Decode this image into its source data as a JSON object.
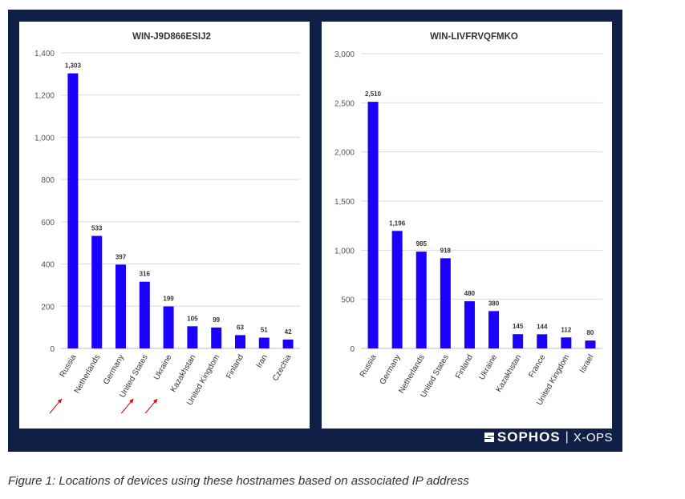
{
  "chart_data": [
    {
      "type": "bar",
      "title": "WIN-J9D866ESIJ2",
      "categories": [
        "Russia",
        "Netherlands",
        "Germany",
        "United States",
        "Ukraine",
        "Kazakhstan",
        "United Kingdom",
        "Finland",
        "Iran",
        "Czechia"
      ],
      "values": [
        1303,
        533,
        397,
        316,
        199,
        105,
        99,
        63,
        51,
        42
      ],
      "data_labels": [
        "1,303",
        "533",
        "397",
        "316",
        "199",
        "105",
        "99",
        "63",
        "51",
        "42"
      ],
      "ylim": [
        0,
        1400
      ],
      "yticks": [
        0,
        200,
        400,
        600,
        800,
        1000,
        1200,
        1400
      ],
      "ytick_labels": [
        "0",
        "200",
        "400",
        "600",
        "800",
        "1,000",
        "1,200",
        "1,400"
      ],
      "grid": true,
      "bar_color": "#1a00ff",
      "annotations": [
        {
          "type": "arrow",
          "color": "#e00000",
          "points_to": "Russia"
        },
        {
          "type": "arrow",
          "color": "#e00000",
          "points_to": "United States"
        },
        {
          "type": "arrow",
          "color": "#e00000",
          "points_to": "Ukraine"
        }
      ]
    },
    {
      "type": "bar",
      "title": "WIN-LIVFRVQFMKO",
      "categories": [
        "Russia",
        "Germany",
        "Netherlands",
        "United States",
        "Finland",
        "Ukraine",
        "Kazakhstan",
        "France",
        "United Kingdom",
        "Israel"
      ],
      "values": [
        2510,
        1196,
        985,
        918,
        480,
        380,
        145,
        144,
        112,
        80
      ],
      "data_labels": [
        "2,510",
        "1,196",
        "985",
        "918",
        "480",
        "380",
        "145",
        "144",
        "112",
        "80"
      ],
      "ylim": [
        0,
        3000
      ],
      "yticks": [
        0,
        500,
        1000,
        1500,
        2000,
        2500,
        3000
      ],
      "ytick_labels": [
        "0",
        "500",
        "1,000",
        "1,500",
        "2,000",
        "2,500",
        "3,000"
      ],
      "grid": true,
      "bar_color": "#1a00ff"
    }
  ],
  "branding": {
    "name": "SOPHOS",
    "separator": "|",
    "sub": "X-OPS"
  },
  "caption": "Figure 1: Locations of devices using these hostnames based on associated IP address"
}
